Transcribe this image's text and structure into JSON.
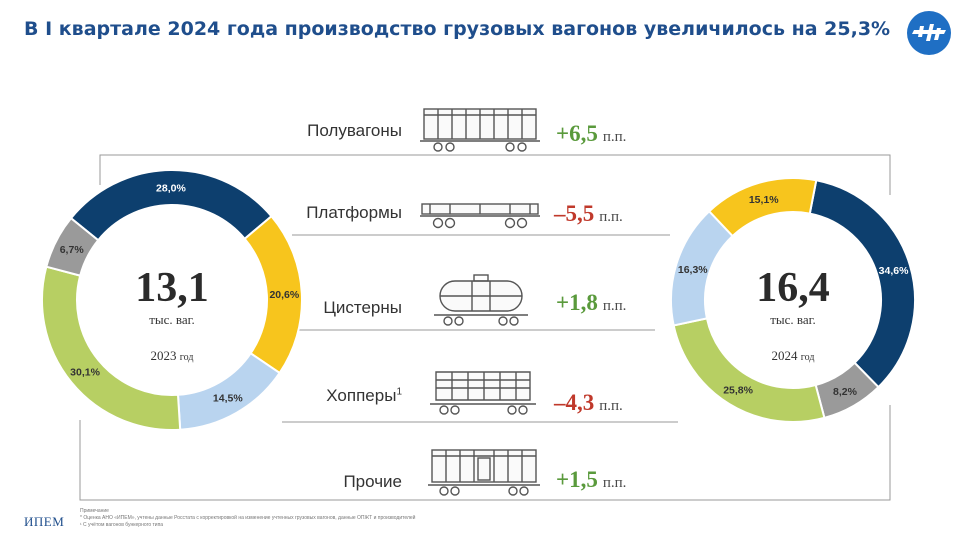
{
  "title": "В I квартале 2024 года производство грузовых вагонов увеличилось на 25,3%",
  "brand": "ИПЕМ",
  "notes": {
    "heading": "Примечание",
    "line1": "* Оценка АНО «ИПЕМ», учтены данные Росстата с корректировкой на изменение учтенных грузовых вагонов, данные ОПЖТ и производителей",
    "line2": "¹ С учётом вагонов бункерного типа"
  },
  "colors": {
    "title": "#1f4e8c",
    "positive": "#5a9a3c",
    "negative": "#c0392b",
    "navy": "#0d3f6e",
    "yellow": "#f7c51d",
    "lightblue": "#b9d4ef",
    "green": "#b7cf63",
    "gray": "#9a9a9a"
  },
  "chart_data": [
    {
      "type": "pie",
      "donut": true,
      "total": "13,1",
      "unit": "тыс. ваг.",
      "year": "2023",
      "year_suffix": "год",
      "slices": [
        {
          "label": "28,0%",
          "value": 28.0,
          "color": "#0d3f6e"
        },
        {
          "label": "20,6%",
          "value": 20.6,
          "color": "#f7c51d"
        },
        {
          "label": "14,5%",
          "value": 14.5,
          "color": "#b9d4ef"
        },
        {
          "label": "30,1%",
          "value": 30.1,
          "color": "#b7cf63"
        },
        {
          "label": "6,7%",
          "value": 6.7,
          "color": "#9a9a9a"
        }
      ]
    },
    {
      "type": "pie",
      "donut": true,
      "total": "16,4",
      "unit": "тыс. ваг.",
      "year": "2024",
      "year_suffix": "год",
      "slices": [
        {
          "label": "34,6%",
          "value": 34.6,
          "color": "#0d3f6e"
        },
        {
          "label": "8,2%",
          "value": 8.2,
          "color": "#9a9a9a"
        },
        {
          "label": "25,8%",
          "value": 25.8,
          "color": "#b7cf63"
        },
        {
          "label": "16,3%",
          "value": 16.3,
          "color": "#b9d4ef"
        },
        {
          "label": "15,1%",
          "value": 15.1,
          "color": "#f7c51d"
        }
      ]
    }
  ],
  "categories": [
    {
      "name": "Полувагоны",
      "sup": "",
      "change": "+6,5",
      "unit": "п.п.",
      "sign": "positive",
      "icon": "gondola-car-icon"
    },
    {
      "name": "Платформы",
      "sup": "",
      "change": "–5,5",
      "unit": "п.п.",
      "sign": "negative",
      "icon": "flatcar-icon"
    },
    {
      "name": "Цистерны",
      "sup": "",
      "change": "+1,8",
      "unit": "п.п.",
      "sign": "positive",
      "icon": "tank-car-icon"
    },
    {
      "name": "Хопперы",
      "sup": "1",
      "change": "–4,3",
      "unit": "п.п.",
      "sign": "negative",
      "icon": "hopper-car-icon"
    },
    {
      "name": "Прочие",
      "sup": "",
      "change": "+1,5",
      "unit": "п.п.",
      "sign": "positive",
      "icon": "boxcar-icon"
    }
  ]
}
